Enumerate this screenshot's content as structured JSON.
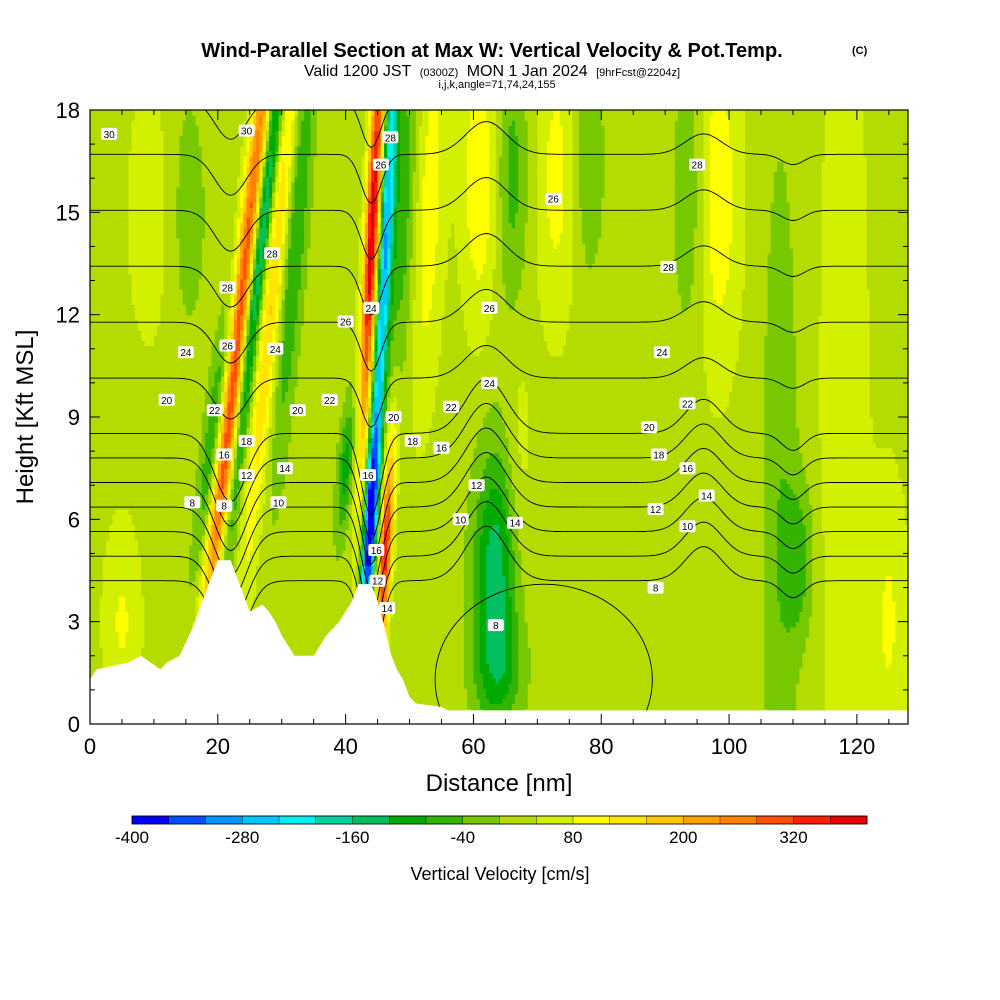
{
  "chart_data": {
    "type": "heatmap",
    "title": "Wind-Parallel Section at Max W: Vertical Velocity & Pot.Temp.",
    "title_mark": "(C)",
    "subtitle": {
      "valid": "Valid 1200 JST",
      "utc": "(0300Z)",
      "date": "MON 1 Jan 2024",
      "fcst": "[9hrFcst@2204z]"
    },
    "params": "i,j,k,angle=71,74,24,155",
    "xlabel": "Distance [nm]",
    "ylabel": "Height [Kft MSL]",
    "xlim": [
      0,
      128
    ],
    "ylim": [
      0,
      18
    ],
    "xticks": [
      "0",
      "20",
      "40",
      "60",
      "80",
      "100",
      "120"
    ],
    "yticks": [
      "0",
      "3",
      "6",
      "9",
      "12",
      "15",
      "18"
    ],
    "colorbar": {
      "label": "Vertical Velocity [cm/s]",
      "min": -400,
      "max": 400,
      "step": 40,
      "tick_labels": [
        "-400",
        "-280",
        "-160",
        "-40",
        "80",
        "200",
        "320"
      ],
      "colors": [
        "#0000ff",
        "#0050ff",
        "#0096ff",
        "#00c8ff",
        "#00f0f0",
        "#00d2a0",
        "#00c060",
        "#00aa00",
        "#32b400",
        "#78c800",
        "#b4dc00",
        "#d2f000",
        "#ffff00",
        "#ffe600",
        "#ffc800",
        "#ffa000",
        "#ff8200",
        "#ff5000",
        "#ff1e00",
        "#e60000",
        "#c00040",
        "#960060",
        "#640080"
      ]
    },
    "terrain": [
      [
        0,
        1.3
      ],
      [
        1,
        1.6
      ],
      [
        6,
        1.8
      ],
      [
        8,
        2
      ],
      [
        11,
        1.6
      ],
      [
        12,
        1.8
      ],
      [
        14,
        2
      ],
      [
        15,
        2.4
      ],
      [
        16,
        2.8
      ],
      [
        17,
        3.3
      ],
      [
        18,
        3.8
      ],
      [
        19,
        4.3
      ],
      [
        20,
        4.8
      ],
      [
        22,
        4.8
      ],
      [
        23,
        4.3
      ],
      [
        24,
        3.8
      ],
      [
        25,
        3.3
      ],
      [
        27,
        3.5
      ],
      [
        28,
        3.3
      ],
      [
        29,
        3.0
      ],
      [
        30,
        2.6
      ],
      [
        31,
        2.3
      ],
      [
        32,
        2.0
      ],
      [
        35,
        2.0
      ],
      [
        36,
        2.3
      ],
      [
        37,
        2.6
      ],
      [
        38,
        2.8
      ],
      [
        39,
        3.0
      ],
      [
        40,
        3.3
      ],
      [
        41,
        3.6
      ],
      [
        42,
        4.1
      ],
      [
        44,
        4.1
      ],
      [
        45,
        3.6
      ],
      [
        46,
        2.9
      ],
      [
        47,
        2.1
      ],
      [
        48,
        1.6
      ],
      [
        49,
        1.3
      ],
      [
        50,
        0.8
      ],
      [
        51,
        0.6
      ],
      [
        55,
        0.5
      ],
      [
        56,
        0.4
      ],
      [
        128,
        0.4
      ]
    ],
    "wcells": [
      {
        "x": 24,
        "y": 13.0,
        "sx": 1.1,
        "sy": 7.0,
        "tilt": 0.6,
        "w": 300
      },
      {
        "x": 26,
        "y": 13.0,
        "sx": 1.0,
        "sy": 7.0,
        "tilt": 0.6,
        "w": -260
      },
      {
        "x": 29,
        "y": 13.5,
        "sx": 1.3,
        "sy": 6.0,
        "tilt": 0.5,
        "w": 160
      },
      {
        "x": 32,
        "y": 14.5,
        "sx": 1.4,
        "sy": 5.0,
        "tilt": 0.4,
        "w": -120
      },
      {
        "x": 20,
        "y": 9.0,
        "sx": 1.2,
        "sy": 3.0,
        "tilt": 0.7,
        "w": -140
      },
      {
        "x": 22,
        "y": 8.0,
        "sx": 1.1,
        "sy": 3.5,
        "tilt": 0.6,
        "w": 160
      },
      {
        "x": 44.2,
        "y": 14.5,
        "sx": 0.8,
        "sy": 4.5,
        "tilt": 0.25,
        "w": 380
      },
      {
        "x": 46.2,
        "y": 14.0,
        "sx": 0.8,
        "sy": 5.0,
        "tilt": 0.25,
        "w": -300
      },
      {
        "x": 43.8,
        "y": 5.8,
        "sx": 0.7,
        "sy": 2.2,
        "tilt": 0.3,
        "w": -420
      },
      {
        "x": 46.2,
        "y": 5.0,
        "sx": 0.7,
        "sy": 2.4,
        "tilt": 0.3,
        "w": 320
      },
      {
        "x": 40,
        "y": 7.5,
        "sx": 0.9,
        "sy": 1.5,
        "tilt": 0.4,
        "w": -120
      },
      {
        "x": 49,
        "y": 15.0,
        "sx": 1.5,
        "sy": 4.0,
        "tilt": 0.2,
        "w": -90
      },
      {
        "x": 53,
        "y": 15.0,
        "sx": 1.7,
        "sy": 4.0,
        "tilt": 0.2,
        "w": 80
      },
      {
        "x": 63.5,
        "y": 4.5,
        "sx": 2.5,
        "sy": 2.6,
        "tilt": 0.0,
        "w": -170
      },
      {
        "x": 64,
        "y": 1.5,
        "sx": 3.0,
        "sy": 1.2,
        "tilt": 0.0,
        "w": -70
      },
      {
        "x": 67,
        "y": 7.5,
        "sx": 1.6,
        "sy": 3.0,
        "tilt": 0.0,
        "w": 40
      },
      {
        "x": 61,
        "y": 16.0,
        "sx": 2.0,
        "sy": 3.0,
        "tilt": 0.0,
        "w": 90
      },
      {
        "x": 66,
        "y": 16.0,
        "sx": 1.8,
        "sy": 3.0,
        "tilt": 0.0,
        "w": -80
      },
      {
        "x": 73,
        "y": 16.0,
        "sx": 2.2,
        "sy": 3.0,
        "tilt": 0.0,
        "w": 70
      },
      {
        "x": 78,
        "y": 16.5,
        "sx": 1.8,
        "sy": 2.5,
        "tilt": 0.0,
        "w": -60
      },
      {
        "x": 98,
        "y": 15.5,
        "sx": 2.5,
        "sy": 3.5,
        "tilt": 0.0,
        "w": 90
      },
      {
        "x": 94,
        "y": 15.5,
        "sx": 2.0,
        "sy": 3.0,
        "tilt": 0.0,
        "w": -70
      },
      {
        "x": 108,
        "y": 6.0,
        "sx": 2.0,
        "sy": 8.0,
        "tilt": 0.0,
        "w": -60
      },
      {
        "x": 111,
        "y": 4.8,
        "sx": 1.6,
        "sy": 1.6,
        "tilt": 0.0,
        "w": -80
      },
      {
        "x": 118,
        "y": 9.0,
        "sx": 2.5,
        "sy": 9.0,
        "tilt": 0.0,
        "w": 50
      },
      {
        "x": 10,
        "y": 15.0,
        "sx": 3.0,
        "sy": 3.0,
        "tilt": 0.0,
        "w": 40
      },
      {
        "x": 15,
        "y": 15.0,
        "sx": 2.5,
        "sy": 3.0,
        "tilt": 0.0,
        "w": -50
      },
      {
        "x": 5,
        "y": 3.0,
        "sx": 2.0,
        "sy": 2.0,
        "tilt": 0.0,
        "w": 60
      },
      {
        "x": 125,
        "y": 3.0,
        "sx": 2.0,
        "sy": 3.0,
        "tilt": 0.0,
        "w": 60
      }
    ],
    "theta_labels": [
      {
        "text": "30",
        "x": 3.0,
        "y": 17.3
      },
      {
        "text": "30",
        "x": 24.5,
        "y": 17.4
      },
      {
        "text": "28",
        "x": 47.0,
        "y": 17.2
      },
      {
        "text": "26",
        "x": 45.5,
        "y": 16.4
      },
      {
        "text": "26",
        "x": 72.5,
        "y": 15.4
      },
      {
        "text": "28",
        "x": 95.0,
        "y": 16.4
      },
      {
        "text": "28",
        "x": 28.5,
        "y": 13.8
      },
      {
        "text": "28",
        "x": 90.5,
        "y": 13.4
      },
      {
        "text": "28",
        "x": 21.5,
        "y": 12.8
      },
      {
        "text": "26",
        "x": 40.0,
        "y": 11.8
      },
      {
        "text": "24",
        "x": 44.0,
        "y": 12.2
      },
      {
        "text": "26",
        "x": 62.5,
        "y": 12.2
      },
      {
        "text": "26",
        "x": 21.5,
        "y": 11.1
      },
      {
        "text": "24",
        "x": 29.0,
        "y": 11.0
      },
      {
        "text": "24",
        "x": 15.0,
        "y": 10.9
      },
      {
        "text": "24",
        "x": 62.5,
        "y": 10.0
      },
      {
        "text": "24",
        "x": 89.5,
        "y": 10.9
      },
      {
        "text": "20",
        "x": 12.0,
        "y": 9.5
      },
      {
        "text": "22",
        "x": 19.5,
        "y": 9.2
      },
      {
        "text": "20",
        "x": 32.5,
        "y": 9.2
      },
      {
        "text": "22",
        "x": 37.5,
        "y": 9.5
      },
      {
        "text": "20",
        "x": 47.5,
        "y": 9.0
      },
      {
        "text": "22",
        "x": 56.5,
        "y": 9.3
      },
      {
        "text": "22",
        "x": 93.5,
        "y": 9.4
      },
      {
        "text": "20",
        "x": 87.5,
        "y": 8.7
      },
      {
        "text": "18",
        "x": 50.5,
        "y": 8.3
      },
      {
        "text": "18",
        "x": 24.5,
        "y": 8.3
      },
      {
        "text": "16",
        "x": 55.0,
        "y": 8.1
      },
      {
        "text": "18",
        "x": 89.0,
        "y": 7.9
      },
      {
        "text": "16",
        "x": 21.0,
        "y": 7.9
      },
      {
        "text": "16",
        "x": 93.5,
        "y": 7.5
      },
      {
        "text": "14",
        "x": 30.5,
        "y": 7.5
      },
      {
        "text": "12",
        "x": 24.5,
        "y": 7.3
      },
      {
        "text": "16",
        "x": 43.5,
        "y": 7.3
      },
      {
        "text": "12",
        "x": 60.5,
        "y": 7.0
      },
      {
        "text": "14",
        "x": 96.5,
        "y": 6.7
      },
      {
        "text": "10",
        "x": 29.5,
        "y": 6.5
      },
      {
        "text": "8",
        "x": 16.0,
        "y": 6.5
      },
      {
        "text": "8",
        "x": 21.0,
        "y": 6.4
      },
      {
        "text": "12",
        "x": 88.5,
        "y": 6.3
      },
      {
        "text": "14",
        "x": 66.5,
        "y": 5.9
      },
      {
        "text": "10",
        "x": 58.0,
        "y": 6.0
      },
      {
        "text": "10",
        "x": 93.5,
        "y": 5.8
      },
      {
        "text": "16",
        "x": 44.8,
        "y": 5.1
      },
      {
        "text": "12",
        "x": 45.0,
        "y": 4.2
      },
      {
        "text": "8",
        "x": 88.5,
        "y": 4.0
      },
      {
        "text": "14",
        "x": 46.5,
        "y": 3.4
      },
      {
        "text": "8",
        "x": 63.5,
        "y": 2.9
      }
    ]
  }
}
